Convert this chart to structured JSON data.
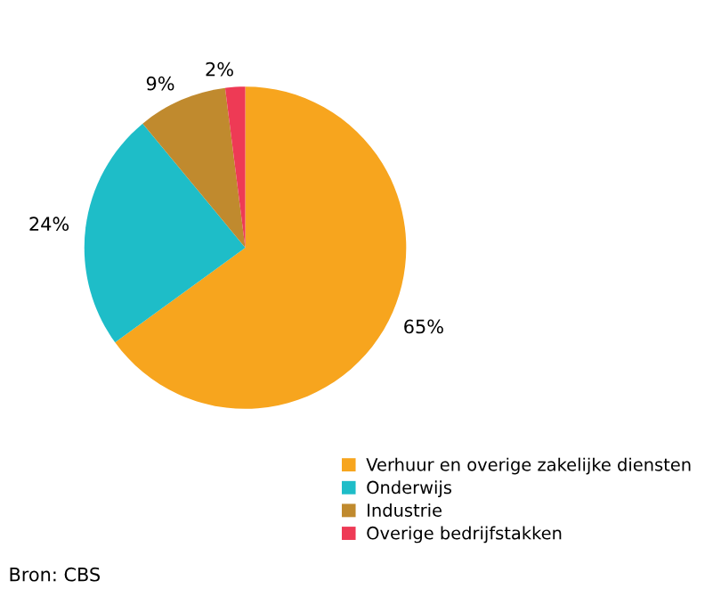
{
  "chart_data": {
    "type": "pie",
    "categories": [
      "Verhuur en overige zakelijke diensten",
      "Onderwijs",
      "Industrie",
      "Overige bedrijfstakken"
    ],
    "values": [
      65,
      24,
      9,
      2
    ],
    "colors": [
      "#f7a51e",
      "#1ebdc8",
      "#c08a2e",
      "#ee3a55"
    ],
    "value_labels": [
      "65%",
      "24%",
      "9%",
      "2%"
    ],
    "legend": "bottom right",
    "annotations": [
      "Bron: CBS"
    ]
  }
}
